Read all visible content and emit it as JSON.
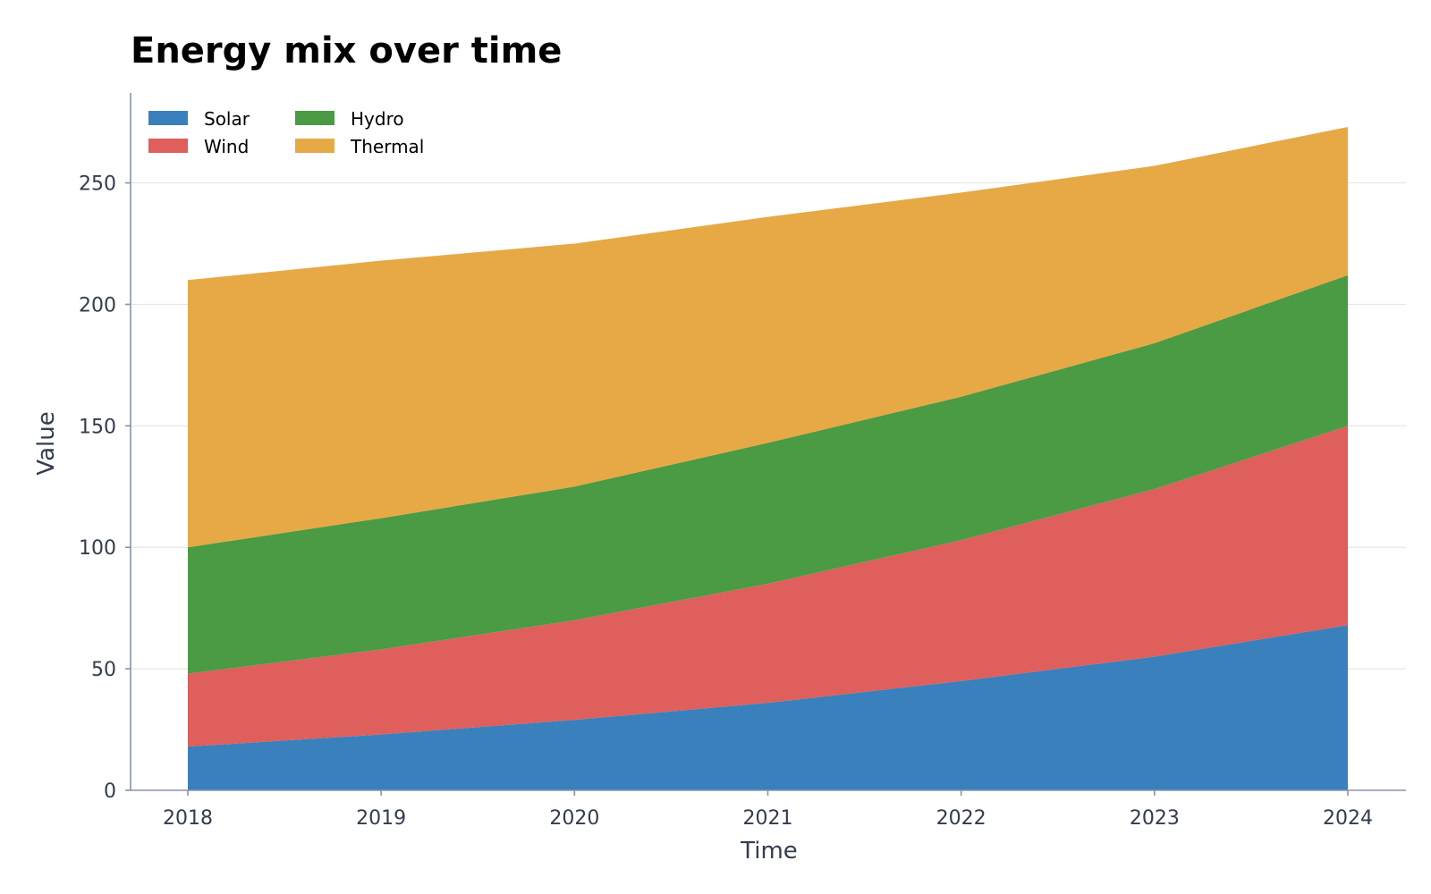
{
  "chart_data": {
    "type": "area",
    "stacked": true,
    "title": "Energy mix over time",
    "xlabel": "Time",
    "ylabel": "Value",
    "x": [
      "2018",
      "2019",
      "2020",
      "2021",
      "2022",
      "2023",
      "2024"
    ],
    "ylim": [
      0,
      287
    ],
    "yticks": [
      0,
      50,
      100,
      150,
      200,
      250
    ],
    "grid": "horizontal",
    "legend_position": "top-left",
    "series": [
      {
        "name": "Solar",
        "color": "#3a80bd",
        "values": [
          18,
          23,
          29,
          36,
          45,
          55,
          68
        ]
      },
      {
        "name": "Wind",
        "color": "#de5f5b",
        "values": [
          30,
          35,
          41,
          49,
          58,
          69,
          82
        ]
      },
      {
        "name": "Hydro",
        "color": "#4b9a44",
        "values": [
          52,
          54,
          55,
          58,
          59,
          60,
          62
        ]
      },
      {
        "name": "Thermal",
        "color": "#e7a946",
        "values": [
          110,
          106,
          100,
          93,
          84,
          73,
          61
        ]
      }
    ]
  }
}
